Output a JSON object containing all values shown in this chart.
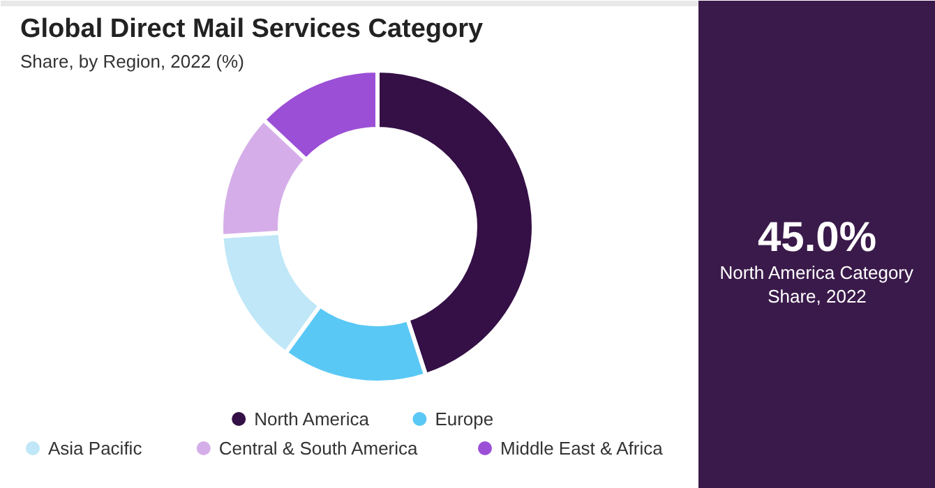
{
  "chart_data": {
    "type": "donut",
    "title": "Global Direct Mail Services Category",
    "subtitle": "Share, by Region, 2022 (%)",
    "categories": [
      "North America",
      "Europe",
      "Asia Pacific",
      "Central & South America",
      "Middle East & Africa"
    ],
    "values": [
      45,
      15,
      14,
      13,
      13
    ],
    "colors": [
      "#341046",
      "#5ac8f5",
      "#bfe7f7",
      "#d5aee9",
      "#9b4fd6"
    ],
    "legend": "bottom",
    "annotations": [
      "45.0%",
      "North America Category Share, 2022"
    ]
  }
}
